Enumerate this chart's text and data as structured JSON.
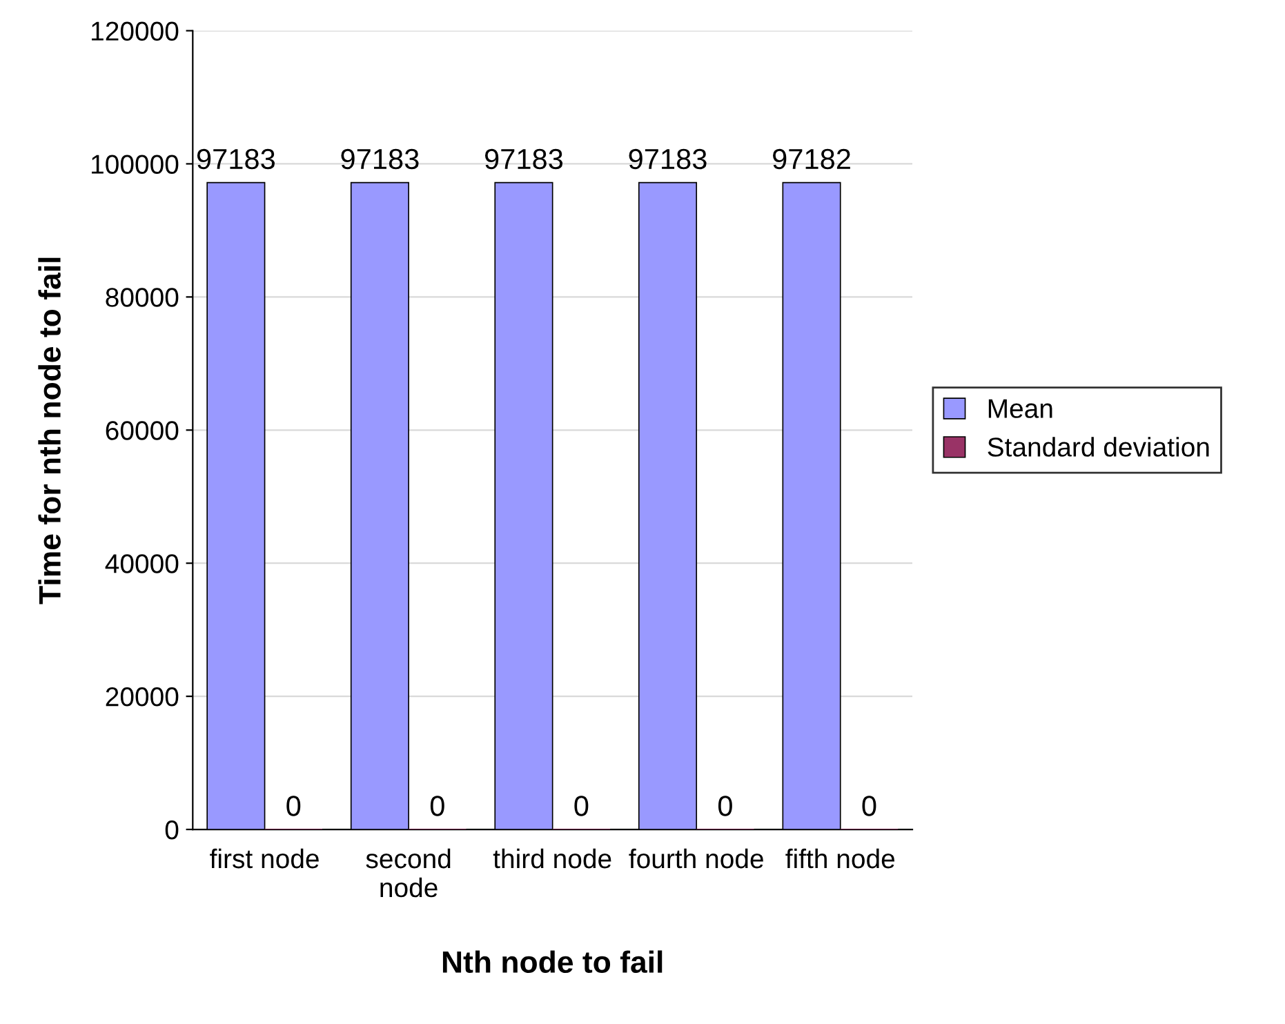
{
  "chart_data": {
    "type": "bar",
    "xlabel": "Nth node to fail",
    "ylabel": "Time for nth node to fail",
    "categories": [
      "first node",
      "second\nnode",
      "third node",
      "fourth node",
      "fifth node"
    ],
    "series": [
      {
        "name": "Mean",
        "color": "#9999ff",
        "values": [
          97183,
          97183,
          97183,
          97183,
          97182
        ]
      },
      {
        "name": "Standard deviation",
        "color": "#993366",
        "values": [
          0,
          0,
          0,
          0,
          0
        ]
      }
    ],
    "ylim": [
      0,
      120000
    ],
    "yticks": [
      0,
      20000,
      40000,
      60000,
      80000,
      100000,
      120000
    ],
    "grid": "y",
    "legend": "right",
    "data_labels": true
  }
}
